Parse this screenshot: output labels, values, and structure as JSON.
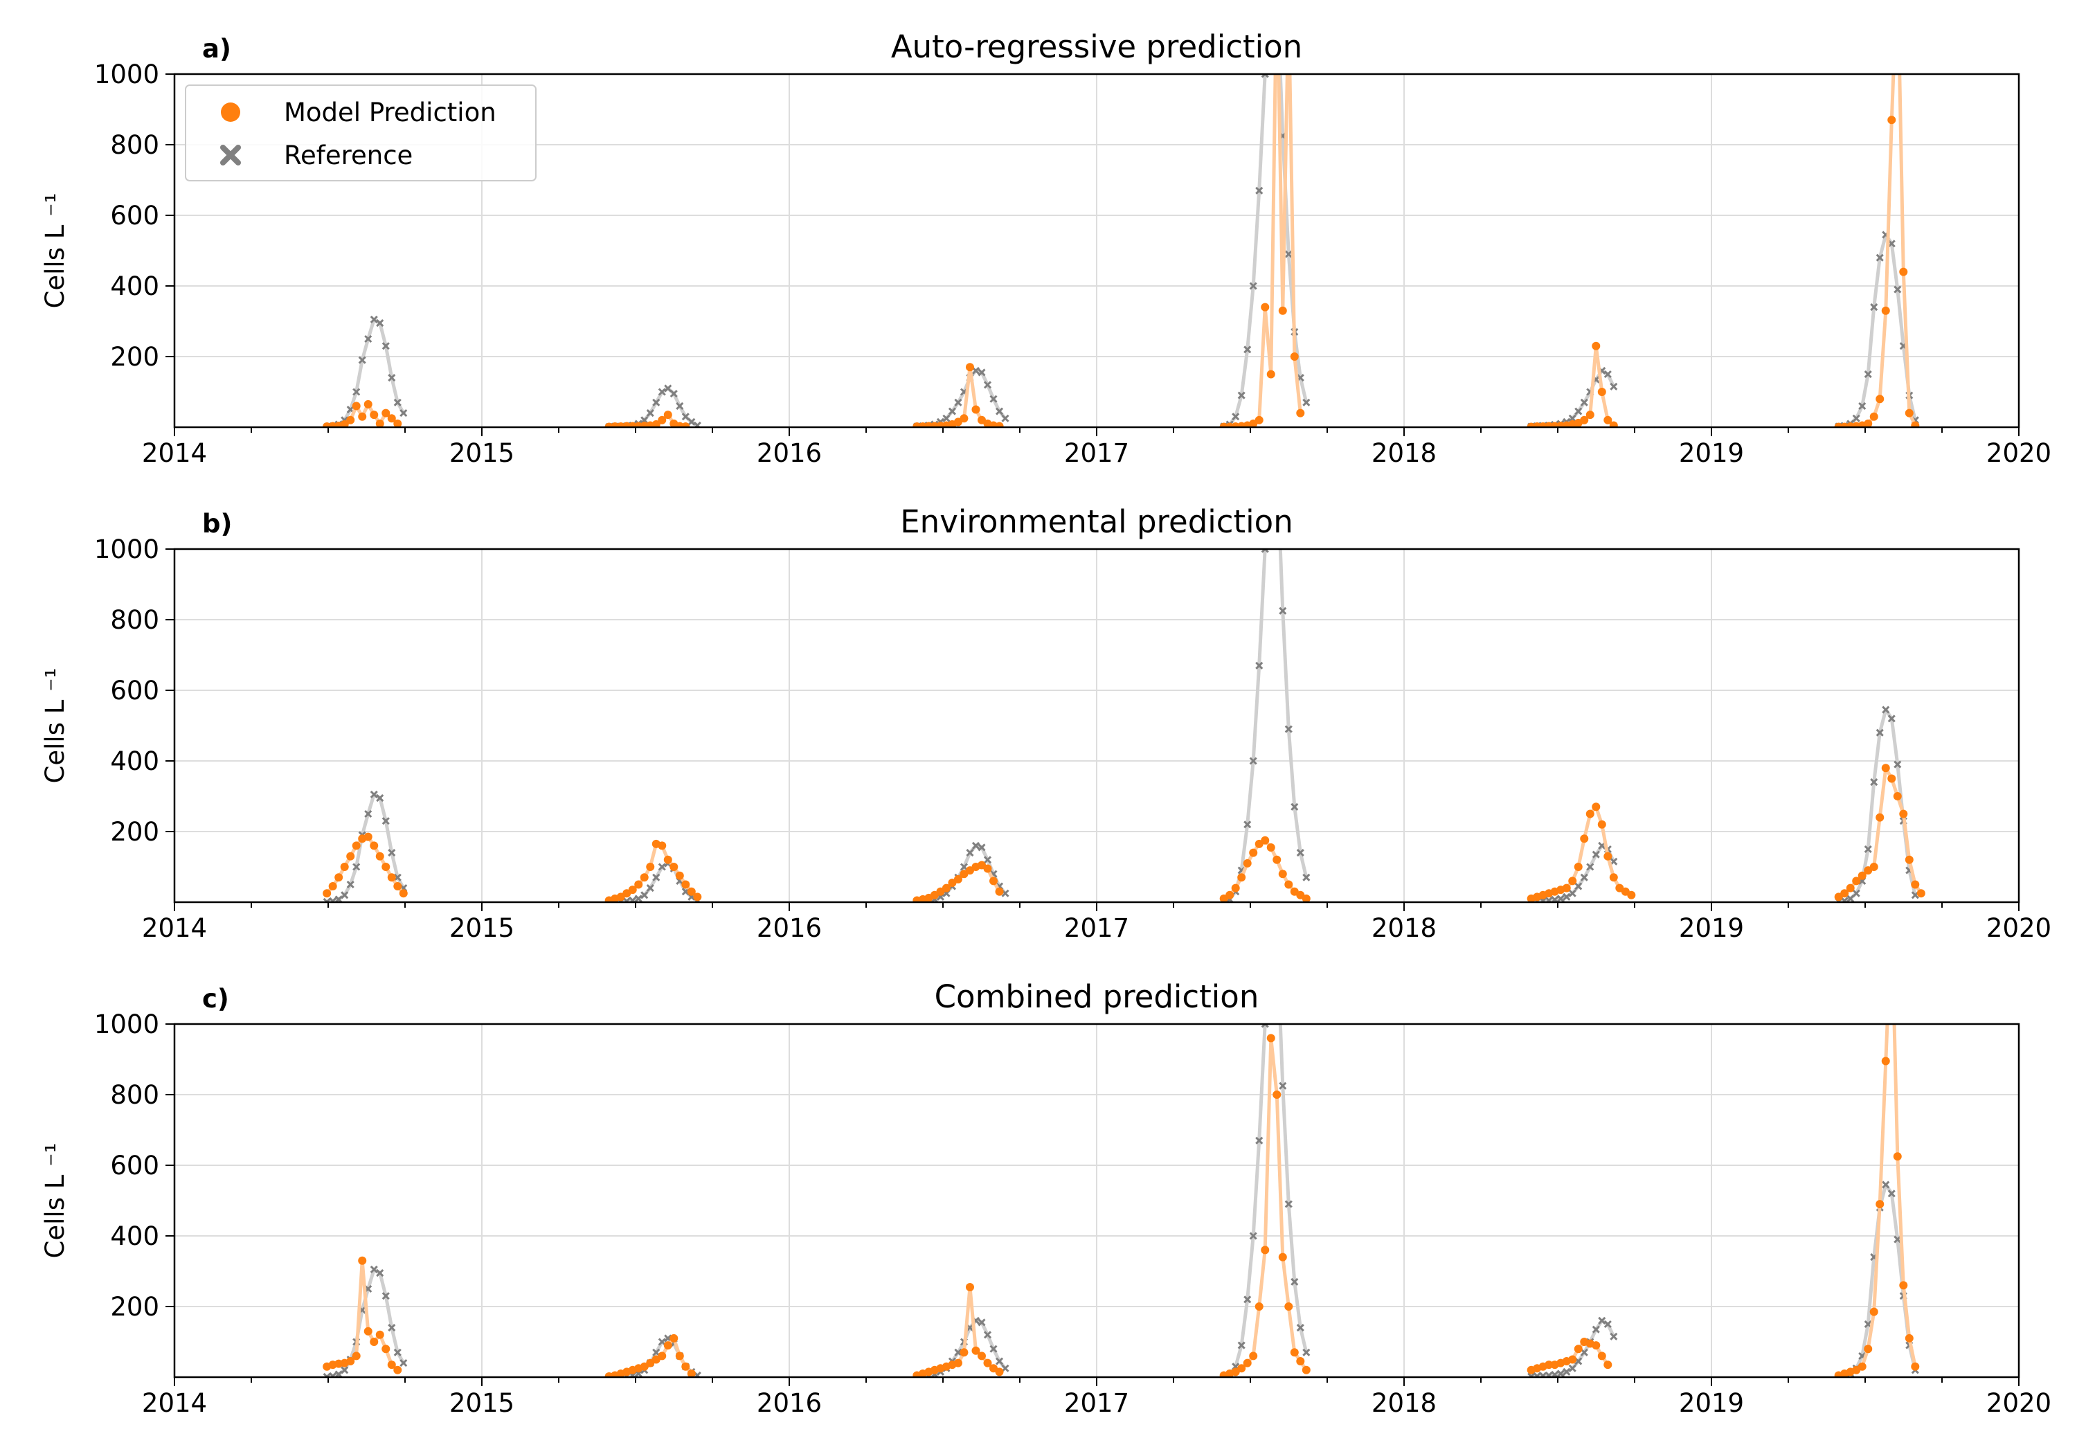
{
  "legend": {
    "placement": "top-left",
    "items": [
      {
        "label": "Model Prediction",
        "marker": "circle",
        "color": "#ff7f0e"
      },
      {
        "label": "Reference",
        "marker": "x",
        "color": "#808080"
      }
    ]
  },
  "colors": {
    "prediction": "#ff7f0e",
    "prediction_line": "#ffc99a",
    "reference": "#7f7f7f",
    "reference_line": "#cfcfcf",
    "grid": "#dddddd"
  },
  "chart_data": [
    {
      "type": "scatter",
      "panel_label": "a)",
      "title": "Auto-regressive prediction",
      "ylabel": "Cells L ⁻¹",
      "xlim": [
        "2014-01-01",
        "2020-01-01"
      ],
      "ylim": [
        0,
        1000
      ],
      "xticks": [
        "2014",
        "2015",
        "2016",
        "2017",
        "2018",
        "2019",
        "2020"
      ],
      "yticks": [
        200,
        400,
        600,
        800,
        1000
      ],
      "grid": true,
      "legend": true,
      "series": [
        {
          "name": "Model Prediction",
          "seasons": [
            {
              "start": "2014-07-01",
              "values": [
                2,
                3,
                4,
                8,
                20,
                60,
                30,
                65,
                35,
                10,
                40,
                25,
                10
              ]
            },
            {
              "start": "2015-06-01",
              "values": [
                1,
                2,
                2,
                3,
                3,
                3,
                4,
                5,
                8,
                20,
                35,
                10,
                3,
                2
              ]
            },
            {
              "start": "2016-06-01",
              "values": [
                2,
                2,
                3,
                3,
                4,
                5,
                8,
                15,
                25,
                170,
                50,
                20,
                10,
                5,
                3
              ]
            },
            {
              "start": "2017-06-01",
              "values": [
                1,
                1,
                2,
                3,
                5,
                10,
                20,
                340,
                150,
                1300,
                330,
                1200,
                200,
                40
              ]
            },
            {
              "start": "2018-06-01",
              "values": [
                1,
                2,
                2,
                3,
                3,
                4,
                5,
                8,
                12,
                20,
                35,
                230,
                100,
                20,
                5
              ]
            },
            {
              "start": "2019-06-01",
              "values": [
                1,
                1,
                2,
                3,
                5,
                10,
                30,
                80,
                330,
                870,
                1300,
                440,
                40,
                5
              ]
            }
          ]
        },
        {
          "name": "Reference",
          "seasons": [
            {
              "start": "2014-07-01",
              "values": [
                1,
                3,
                8,
                20,
                50,
                100,
                190,
                250,
                305,
                295,
                230,
                140,
                70,
                40
              ]
            },
            {
              "start": "2015-06-01",
              "values": [
                1,
                2,
                2,
                3,
                5,
                10,
                20,
                40,
                70,
                100,
                110,
                95,
                60,
                30,
                15,
                5
              ]
            },
            {
              "start": "2016-06-01",
              "values": [
                2,
                3,
                5,
                8,
                15,
                25,
                45,
                70,
                100,
                140,
                160,
                155,
                120,
                80,
                45,
                25
              ]
            },
            {
              "start": "2017-06-01",
              "values": [
                2,
                8,
                30,
                90,
                220,
                400,
                670,
                1000,
                1300,
                1250,
                825,
                490,
                270,
                140,
                70
              ]
            },
            {
              "start": "2018-06-01",
              "values": [
                2,
                3,
                4,
                5,
                7,
                10,
                15,
                25,
                45,
                70,
                100,
                135,
                160,
                150,
                115
              ]
            },
            {
              "start": "2019-06-01",
              "values": [
                2,
                4,
                10,
                25,
                60,
                150,
                340,
                480,
                545,
                520,
                390,
                230,
                90,
                20
              ]
            }
          ]
        }
      ]
    },
    {
      "type": "scatter",
      "panel_label": "b)",
      "title": "Environmental prediction",
      "ylabel": "Cells L ⁻¹",
      "xlim": [
        "2014-01-01",
        "2020-01-01"
      ],
      "ylim": [
        0,
        1000
      ],
      "xticks": [
        "2014",
        "2015",
        "2016",
        "2017",
        "2018",
        "2019",
        "2020"
      ],
      "yticks": [
        200,
        400,
        600,
        800,
        1000
      ],
      "grid": true,
      "legend": false,
      "series": [
        {
          "name": "Model Prediction",
          "seasons": [
            {
              "start": "2014-07-01",
              "values": [
                25,
                45,
                70,
                100,
                130,
                160,
                180,
                185,
                160,
                130,
                100,
                70,
                45,
                25
              ]
            },
            {
              "start": "2015-06-01",
              "values": [
                5,
                10,
                15,
                25,
                35,
                50,
                70,
                100,
                165,
                160,
                120,
                100,
                75,
                50,
                30,
                15
              ]
            },
            {
              "start": "2016-06-01",
              "values": [
                5,
                8,
                12,
                20,
                30,
                40,
                55,
                65,
                80,
                90,
                100,
                105,
                95,
                60,
                30
              ]
            },
            {
              "start": "2017-06-01",
              "values": [
                10,
                20,
                40,
                70,
                110,
                140,
                165,
                175,
                155,
                120,
                80,
                50,
                30,
                20,
                10
              ]
            },
            {
              "start": "2018-06-01",
              "values": [
                10,
                15,
                20,
                25,
                30,
                35,
                40,
                60,
                100,
                180,
                250,
                270,
                220,
                130,
                70,
                40,
                30,
                20
              ]
            },
            {
              "start": "2019-06-01",
              "values": [
                15,
                25,
                40,
                60,
                75,
                90,
                100,
                240,
                380,
                350,
                300,
                250,
                120,
                50,
                25
              ]
            }
          ]
        },
        {
          "name": "Reference",
          "seasons": [
            {
              "start": "2014-07-01",
              "values": [
                1,
                3,
                8,
                20,
                50,
                100,
                190,
                250,
                305,
                295,
                230,
                140,
                70,
                40
              ]
            },
            {
              "start": "2015-06-01",
              "values": [
                1,
                2,
                2,
                3,
                5,
                10,
                20,
                40,
                70,
                100,
                110,
                95,
                60,
                30,
                15,
                5
              ]
            },
            {
              "start": "2016-06-01",
              "values": [
                2,
                3,
                5,
                8,
                15,
                25,
                45,
                70,
                100,
                140,
                160,
                155,
                120,
                80,
                45,
                25
              ]
            },
            {
              "start": "2017-06-01",
              "values": [
                2,
                8,
                30,
                90,
                220,
                400,
                670,
                1000,
                1300,
                1250,
                825,
                490,
                270,
                140,
                70
              ]
            },
            {
              "start": "2018-06-01",
              "values": [
                2,
                3,
                4,
                5,
                7,
                10,
                15,
                25,
                45,
                70,
                100,
                135,
                160,
                150,
                115
              ]
            },
            {
              "start": "2019-06-01",
              "values": [
                2,
                4,
                10,
                25,
                60,
                150,
                340,
                480,
                545,
                520,
                390,
                230,
                90,
                20
              ]
            }
          ]
        }
      ]
    },
    {
      "type": "scatter",
      "panel_label": "c)",
      "title": "Combined prediction",
      "ylabel": "Cells L ⁻¹",
      "xlim": [
        "2014-01-01",
        "2020-01-01"
      ],
      "ylim": [
        0,
        1000
      ],
      "xticks": [
        "2014",
        "2015",
        "2016",
        "2017",
        "2018",
        "2019",
        "2020"
      ],
      "yticks": [
        200,
        400,
        600,
        800,
        1000
      ],
      "grid": true,
      "legend": false,
      "series": [
        {
          "name": "Model Prediction",
          "seasons": [
            {
              "start": "2014-07-01",
              "values": [
                30,
                35,
                38,
                40,
                45,
                60,
                330,
                130,
                100,
                120,
                80,
                35,
                20
              ]
            },
            {
              "start": "2015-06-01",
              "values": [
                2,
                5,
                10,
                15,
                20,
                25,
                30,
                40,
                50,
                60,
                90,
                110,
                60,
                30,
                10
              ]
            },
            {
              "start": "2016-06-01",
              "values": [
                5,
                10,
                15,
                20,
                25,
                30,
                35,
                40,
                70,
                255,
                75,
                60,
                40,
                25,
                15
              ]
            },
            {
              "start": "2017-06-01",
              "values": [
                5,
                10,
                15,
                25,
                40,
                60,
                200,
                360,
                960,
                800,
                340,
                200,
                70,
                45,
                20
              ]
            },
            {
              "start": "2018-06-01",
              "values": [
                20,
                25,
                30,
                35,
                35,
                40,
                45,
                50,
                80,
                100,
                95,
                90,
                60,
                35
              ]
            },
            {
              "start": "2019-06-01",
              "values": [
                5,
                10,
                15,
                20,
                30,
                80,
                185,
                490,
                895,
                1300,
                625,
                260,
                110,
                30
              ]
            }
          ]
        },
        {
          "name": "Reference",
          "seasons": [
            {
              "start": "2014-07-01",
              "values": [
                1,
                3,
                8,
                20,
                50,
                100,
                190,
                250,
                305,
                295,
                230,
                140,
                70,
                40
              ]
            },
            {
              "start": "2015-06-01",
              "values": [
                1,
                2,
                2,
                3,
                5,
                10,
                20,
                40,
                70,
                100,
                110,
                95,
                60,
                30,
                15,
                5
              ]
            },
            {
              "start": "2016-06-01",
              "values": [
                2,
                3,
                5,
                8,
                15,
                25,
                45,
                70,
                100,
                140,
                160,
                155,
                120,
                80,
                45,
                25
              ]
            },
            {
              "start": "2017-06-01",
              "values": [
                2,
                8,
                30,
                90,
                220,
                400,
                670,
                1000,
                1300,
                1250,
                825,
                490,
                270,
                140,
                70
              ]
            },
            {
              "start": "2018-06-01",
              "values": [
                2,
                3,
                4,
                5,
                7,
                10,
                15,
                25,
                45,
                70,
                100,
                135,
                160,
                150,
                115
              ]
            },
            {
              "start": "2019-06-01",
              "values": [
                2,
                4,
                10,
                25,
                60,
                150,
                340,
                480,
                545,
                520,
                390,
                230,
                90,
                20
              ]
            }
          ]
        }
      ]
    }
  ]
}
